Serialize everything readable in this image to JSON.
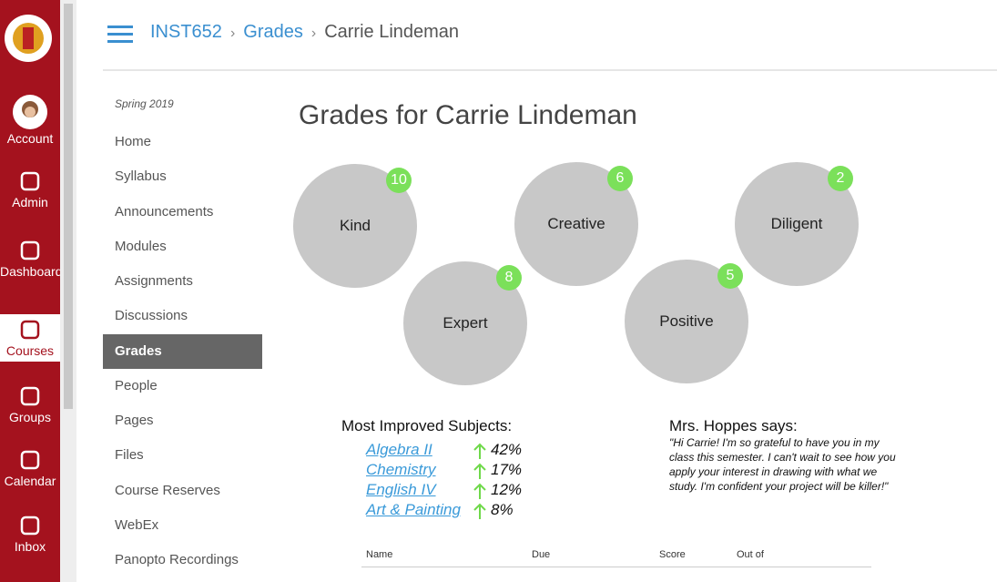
{
  "global_nav": {
    "items": [
      "Account",
      "Admin",
      "Dashboard",
      "Courses",
      "Groups",
      "Calendar",
      "Inbox"
    ],
    "active": 3
  },
  "breadcrumb": [
    "INST652",
    "Grades",
    "Carrie Lindeman"
  ],
  "course_nav": {
    "term": "Spring 2019",
    "items": [
      "Home",
      "Syllabus",
      "Announcements",
      "Modules",
      "Assignments",
      "Discussions",
      "Grades",
      "People",
      "Pages",
      "Files",
      "Course Reserves",
      "WebEx",
      "Panopto Recordings"
    ],
    "active": 6
  },
  "page": {
    "title": "Grades for Carrie Lindeman",
    "badges": [
      {
        "label": "Kind",
        "count": 10
      },
      {
        "label": "Creative",
        "count": 6
      },
      {
        "label": "Diligent",
        "count": 2
      },
      {
        "label": "Expert",
        "count": 8
      },
      {
        "label": "Positive",
        "count": 5
      }
    ],
    "improved": {
      "title": "Most Improved Subjects:",
      "items": [
        {
          "subject": "Algebra II",
          "change": "42%"
        },
        {
          "subject": "Chemistry",
          "change": "17%"
        },
        {
          "subject": "English IV",
          "change": "12%"
        },
        {
          "subject": "Art & Painting",
          "change": "8%"
        }
      ]
    },
    "note": {
      "title": "Mrs. Hoppes says:",
      "text": "\"Hi Carrie! I'm so grateful to have you in my class this semester. I can't wait to see how you apply your interest in drawing with what we study. I'm confident your project will be killer!\""
    },
    "table_headers": [
      "Name",
      "Due",
      "Score",
      "Out of"
    ]
  }
}
